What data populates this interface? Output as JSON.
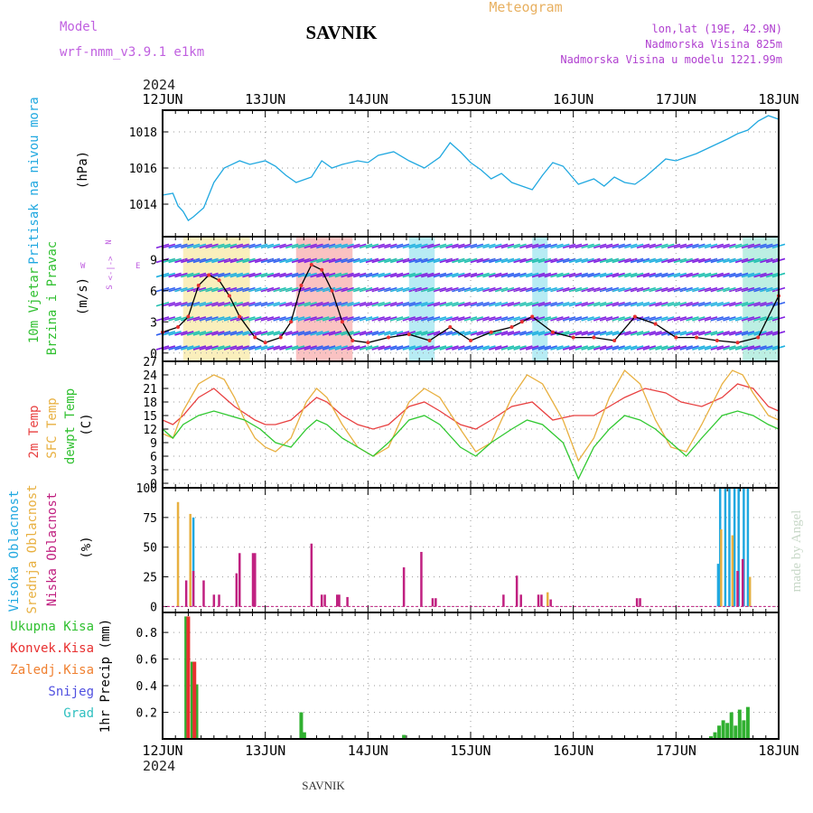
{
  "header": {
    "model_label": "Model",
    "model_value": "wrf-nmm_v3.9.1 e1km",
    "station_title": "SAVNIK",
    "chart_kind": "Meteogram",
    "coords": "lon,lat (19E, 42.9N)",
    "elevation": "Nadmorska Visina 825m",
    "model_elevation": "Nadmorska Visina u modelu 1221.99m",
    "year_top": "2024",
    "year_bottom": "2024",
    "footer_station": "SAVNIK",
    "watermark": "made by Angel",
    "colors": {
      "model": "#c060e0",
      "meteogram": "#e8b060",
      "coords": "#b040d0"
    }
  },
  "days": [
    "12JUN",
    "13JUN",
    "14JUN",
    "15JUN",
    "16JUN",
    "17JUN",
    "18JUN"
  ],
  "panels": {
    "pressure": {
      "ylabel": "(hPa)",
      "side_label": "Pritisak na nivou mora",
      "side_color": "#20a8e0"
    },
    "wind": {
      "ylabel": "(m/s)",
      "side_label_1": "10m Vjetar",
      "side_label_2": "Brzina i Pravac",
      "compass_n": "N",
      "compass_w": "W",
      "compass_e": "E",
      "compass_arrow": "<-|->",
      "compass_s": "S"
    },
    "temp": {
      "ylabel": "(C)",
      "label_1": "2m Temp",
      "label_2": "SFC Temp",
      "label_3": "dewpt Temp"
    },
    "cloud": {
      "ylabel": "(%)",
      "label_1": "Visoka Oblacnost",
      "label_2": "Srednja Oblacnost",
      "label_3": "Niska Oblacnost"
    },
    "precip": {
      "ylabel": "1hr Precip (mm)",
      "legend": [
        {
          "label": "Ukupna Kisa",
          "color": "#30c030"
        },
        {
          "label": "Konvek.Kisa",
          "color": "#e83030"
        },
        {
          "label": "Zaledj.Kisa",
          "color": "#f08030"
        },
        {
          "label": "Snijeg",
          "color": "#5050e0"
        },
        {
          "label": "Grad",
          "color": "#30c0c0"
        }
      ]
    }
  },
  "chart_data": [
    {
      "type": "line",
      "ylabel": "(hPa)",
      "ylim": [
        1012.2,
        1019.2
      ],
      "yticks": [
        1014,
        1016,
        1018
      ],
      "series": [
        {
          "name": "Pritisak na nivou mora",
          "color": "#20a8e0",
          "x": [
            0,
            0.1,
            0.15,
            0.2,
            0.25,
            0.3,
            0.4,
            0.5,
            0.6,
            0.75,
            0.85,
            1.0,
            1.1,
            1.2,
            1.3,
            1.45,
            1.55,
            1.65,
            1.75,
            1.9,
            2.0,
            2.1,
            2.25,
            2.4,
            2.55,
            2.7,
            2.8,
            2.9,
            3.0,
            3.1,
            3.2,
            3.3,
            3.4,
            3.5,
            3.6,
            3.7,
            3.8,
            3.9,
            4.05,
            4.2,
            4.3,
            4.4,
            4.5,
            4.6,
            4.7,
            4.8,
            4.9,
            5.0,
            5.1,
            5.2,
            5.35,
            5.5,
            5.6,
            5.7,
            5.8,
            5.9,
            6.0
          ],
          "values": [
            1014.5,
            1014.6,
            1013.9,
            1013.6,
            1013.1,
            1013.3,
            1013.8,
            1015.2,
            1016.0,
            1016.4,
            1016.2,
            1016.4,
            1016.1,
            1015.6,
            1015.2,
            1015.5,
            1016.4,
            1016.0,
            1016.2,
            1016.4,
            1016.3,
            1016.7,
            1016.9,
            1016.4,
            1016.0,
            1016.6,
            1017.4,
            1016.9,
            1016.3,
            1015.9,
            1015.4,
            1015.7,
            1015.2,
            1015.0,
            1014.8,
            1015.6,
            1016.3,
            1016.1,
            1015.1,
            1015.4,
            1015.0,
            1015.5,
            1015.2,
            1015.1,
            1015.5,
            1016.0,
            1016.5,
            1016.4,
            1016.6,
            1016.8,
            1017.2,
            1017.6,
            1017.9,
            1018.1,
            1018.6,
            1018.9,
            1018.7
          ]
        }
      ]
    },
    {
      "type": "line",
      "ylabel": "(m/s)",
      "ylim": [
        -0.8,
        11.2
      ],
      "yticks": [
        0,
        3,
        6,
        9
      ],
      "series": [
        {
          "name": "10m Vjetar",
          "color": "#000000",
          "x": [
            0,
            0.15,
            0.25,
            0.35,
            0.45,
            0.55,
            0.65,
            0.75,
            0.9,
            1.0,
            1.15,
            1.25,
            1.35,
            1.45,
            1.55,
            1.65,
            1.75,
            1.85,
            2.0,
            2.2,
            2.4,
            2.6,
            2.8,
            3.0,
            3.2,
            3.4,
            3.5,
            3.6,
            3.8,
            4.0,
            4.2,
            4.4,
            4.6,
            4.8,
            5.0,
            5.2,
            5.4,
            5.6,
            5.8,
            6.0
          ],
          "values": [
            2.0,
            2.5,
            3.5,
            6.5,
            7.5,
            7.0,
            5.5,
            3.5,
            1.5,
            1.0,
            1.5,
            3.0,
            6.5,
            8.5,
            8.0,
            6.0,
            3.0,
            1.2,
            1.0,
            1.5,
            1.8,
            1.2,
            2.5,
            1.2,
            2.0,
            2.5,
            3.0,
            3.5,
            2.0,
            1.5,
            1.5,
            1.2,
            3.5,
            2.8,
            1.5,
            1.5,
            1.2,
            1.0,
            1.5,
            5.5
          ]
        }
      ]
    },
    {
      "type": "line",
      "ylabel": "(C)",
      "ylim": [
        -1,
        27
      ],
      "yticks": [
        0,
        3,
        6,
        9,
        12,
        15,
        18,
        21,
        24,
        27
      ],
      "series": [
        {
          "name": "2m Temp",
          "color": "#e84040",
          "x": [
            0,
            0.1,
            0.2,
            0.35,
            0.5,
            0.7,
            0.9,
            1.0,
            1.1,
            1.25,
            1.4,
            1.5,
            1.6,
            1.75,
            1.9,
            2.05,
            2.2,
            2.4,
            2.55,
            2.7,
            2.9,
            3.05,
            3.2,
            3.4,
            3.6,
            3.8,
            4.0,
            4.2,
            4.35,
            4.5,
            4.7,
            4.9,
            5.05,
            5.25,
            5.45,
            5.6,
            5.75,
            5.9,
            6.0
          ],
          "values": [
            14,
            13,
            15,
            19,
            21,
            17,
            14,
            13,
            13,
            14,
            17,
            19,
            18,
            15,
            13,
            12,
            13,
            17,
            18,
            16,
            13,
            12,
            14,
            17,
            18,
            14,
            15,
            15,
            17,
            19,
            21,
            20,
            18,
            17,
            19,
            22,
            21,
            17,
            16
          ]
        },
        {
          "name": "SFC Temp",
          "color": "#e8b040",
          "x": [
            0,
            0.1,
            0.2,
            0.35,
            0.5,
            0.6,
            0.7,
            0.8,
            0.9,
            1.0,
            1.1,
            1.25,
            1.4,
            1.5,
            1.6,
            1.75,
            1.9,
            2.05,
            2.2,
            2.4,
            2.55,
            2.7,
            2.9,
            3.05,
            3.2,
            3.4,
            3.55,
            3.7,
            3.9,
            4.05,
            4.2,
            4.35,
            4.5,
            4.65,
            4.8,
            4.95,
            5.1,
            5.25,
            5.45,
            5.55,
            5.65,
            5.75,
            5.9,
            6.0
          ],
          "values": [
            11,
            10,
            16,
            22,
            24,
            23,
            19,
            14,
            10,
            8,
            7,
            10,
            18,
            21,
            19,
            13,
            8,
            6,
            8,
            18,
            21,
            19,
            12,
            7,
            9,
            19,
            24,
            22,
            14,
            5,
            10,
            19,
            25,
            22,
            14,
            8,
            7,
            13,
            22,
            25,
            24,
            20,
            15,
            14
          ]
        },
        {
          "name": "dewpt Temp",
          "color": "#30c830",
          "x": [
            0,
            0.1,
            0.2,
            0.35,
            0.5,
            0.65,
            0.8,
            0.95,
            1.1,
            1.25,
            1.4,
            1.5,
            1.6,
            1.75,
            1.9,
            2.05,
            2.2,
            2.4,
            2.55,
            2.7,
            2.9,
            3.05,
            3.2,
            3.4,
            3.55,
            3.7,
            3.9,
            4.05,
            4.2,
            4.35,
            4.5,
            4.65,
            4.8,
            4.95,
            5.1,
            5.25,
            5.45,
            5.6,
            5.75,
            5.9,
            6.0
          ],
          "values": [
            12,
            10,
            13,
            15,
            16,
            15,
            14,
            12,
            9,
            8,
            12,
            14,
            13,
            10,
            8,
            6,
            9,
            14,
            15,
            13,
            8,
            6,
            9,
            12,
            14,
            13,
            9,
            1,
            8,
            12,
            15,
            14,
            12,
            9,
            6,
            10,
            15,
            16,
            15,
            13,
            12
          ]
        }
      ]
    },
    {
      "type": "bar",
      "ylabel": "(%)",
      "ylim": [
        -5,
        100
      ],
      "yticks": [
        0,
        25,
        50,
        75,
        100
      ],
      "series": [
        {
          "name": "Visoka Oblacnost",
          "color": "#20a8e0",
          "x": [
            0.3,
            5.41,
            5.43,
            5.48,
            5.52,
            5.57,
            5.61,
            5.66,
            5.7
          ],
          "values": [
            75,
            36,
            100,
            100,
            100,
            100,
            100,
            100,
            100
          ]
        },
        {
          "name": "Srednja Oblacnost",
          "color": "#e8b040",
          "x": [
            0.15,
            0.27,
            3.75,
            5.44,
            5.55,
            5.72
          ],
          "values": [
            88,
            78,
            12,
            65,
            60,
            25
          ]
        },
        {
          "name": "Niska Oblacnost",
          "color": "#c02080",
          "x": [
            0.23,
            0.3,
            0.4,
            0.5,
            0.55,
            0.72,
            0.75,
            0.88,
            0.9,
            1.45,
            1.55,
            1.58,
            1.7,
            1.72,
            1.8,
            2.35,
            2.52,
            2.63,
            2.66,
            3.32,
            3.45,
            3.49,
            3.66,
            3.69,
            3.78,
            4.62,
            4.65,
            5.6,
            5.65
          ],
          "values": [
            22,
            30,
            22,
            10,
            10,
            28,
            45,
            45,
            45,
            53,
            10,
            10,
            10,
            10,
            8,
            33,
            46,
            7,
            7,
            10,
            26,
            10,
            10,
            10,
            6,
            7,
            7,
            30,
            40
          ]
        }
      ]
    },
    {
      "type": "bar",
      "ylabel": "1hr Precip (mm)",
      "ylim": [
        0,
        0.95
      ],
      "yticks": [
        0.2,
        0.4,
        0.6,
        0.8
      ],
      "series": [
        {
          "name": "Ukupna Kisa",
          "color": "#30b030",
          "x": [
            0.23,
            0.29,
            0.33,
            1.35,
            1.38,
            2.35,
            5.34,
            5.38,
            5.42,
            5.46,
            5.5,
            5.54,
            5.58,
            5.62,
            5.66,
            5.7
          ],
          "values": [
            0.92,
            0.58,
            0.41,
            0.2,
            0.05,
            0.03,
            0.02,
            0.05,
            0.1,
            0.14,
            0.12,
            0.2,
            0.1,
            0.22,
            0.14,
            0.24
          ]
        },
        {
          "name": "Konvek.Kisa",
          "color": "#e83030",
          "x": [
            0.25,
            0.31
          ],
          "values": [
            0.92,
            0.58
          ]
        }
      ]
    }
  ]
}
